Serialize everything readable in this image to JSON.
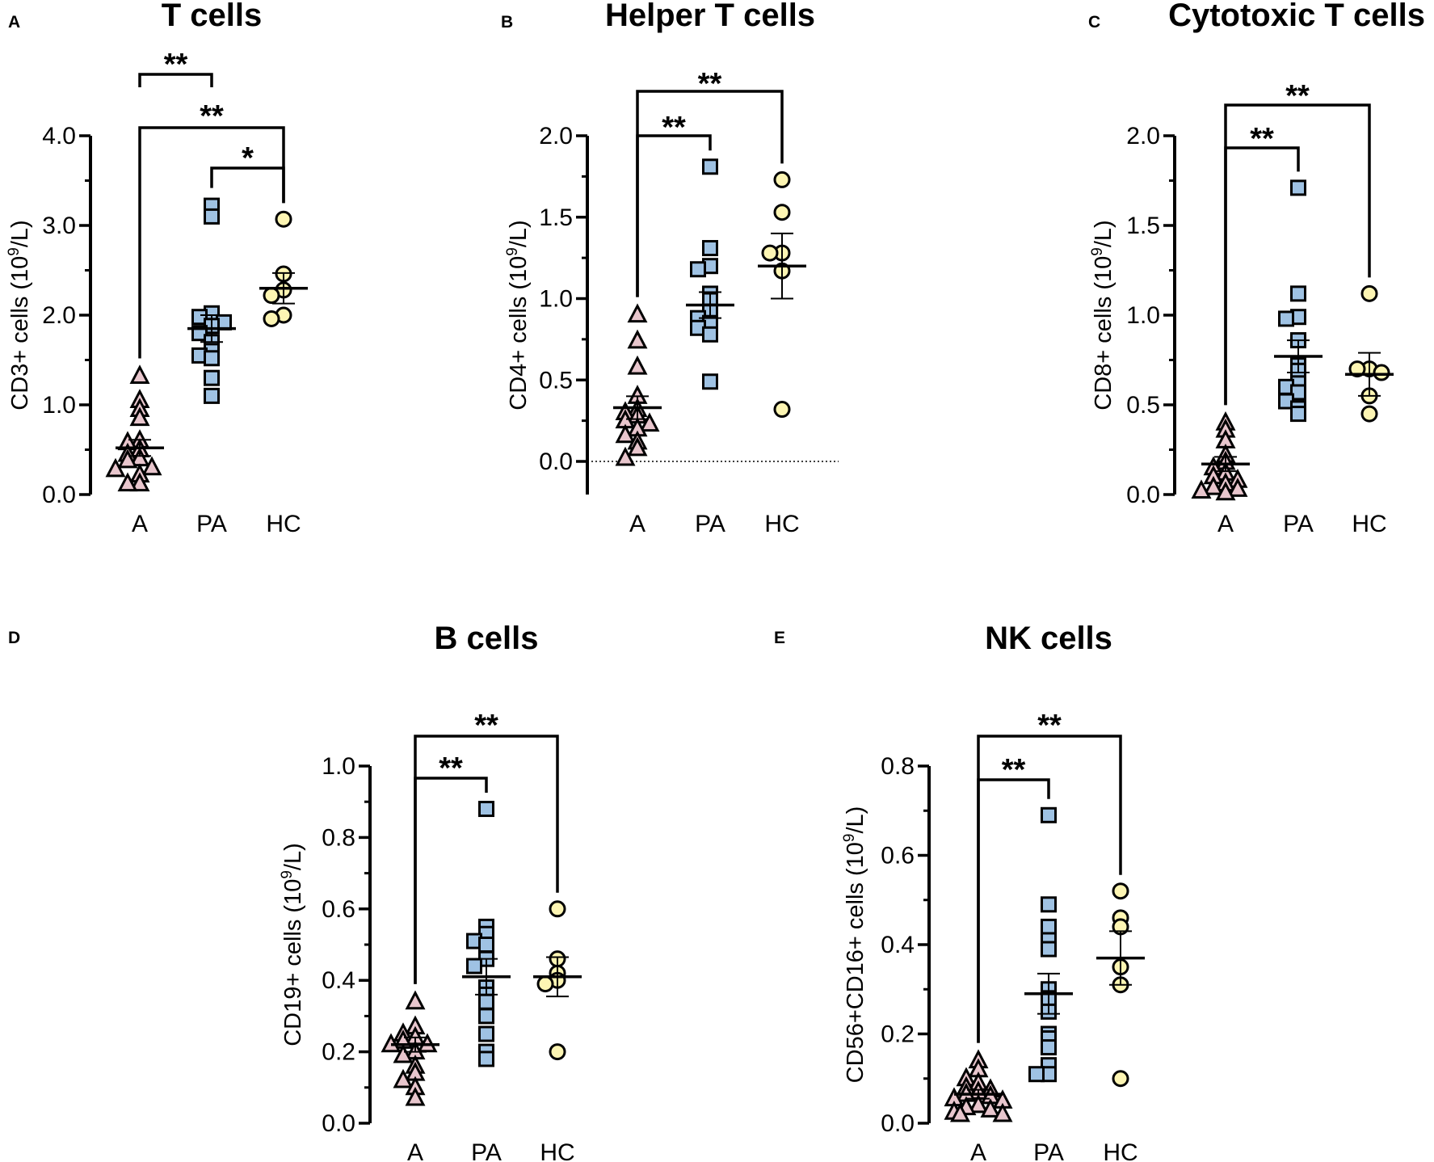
{
  "chart_data": [
    {
      "panel": "A",
      "type": "scatter",
      "title": "T cells",
      "ylabel_main": "CD3+ cells (10",
      "ylabel_sup": "9",
      "ylabel_end": "/L)",
      "ylim": [
        0,
        4.0
      ],
      "yticks": [
        0,
        1.0,
        2.0,
        3.0,
        4.0
      ],
      "ytick_labels": [
        "0.0",
        "1.0",
        "2.0",
        "3.0",
        "4.0"
      ],
      "minor_step": 0.5,
      "zero_line": false,
      "categories": [
        "A",
        "PA",
        "HC"
      ],
      "groups": [
        {
          "name": "A",
          "marker": "triangle",
          "color": "#e8c6cd",
          "mean": 0.52,
          "sem": 0.09,
          "values": [
            1.32,
            1.05,
            0.95,
            0.85,
            0.6,
            0.58,
            0.5,
            0.45,
            0.4,
            0.38,
            0.3,
            0.28,
            0.22,
            0.12,
            0.12
          ]
        },
        {
          "name": "PA",
          "marker": "square",
          "color": "#9fc2e3",
          "mean": 1.85,
          "sem": 0.15,
          "values": [
            3.22,
            3.1,
            2.02,
            1.98,
            1.92,
            1.88,
            1.8,
            1.7,
            1.6,
            1.55,
            1.52,
            1.3,
            1.1
          ]
        },
        {
          "name": "HC",
          "marker": "circle",
          "color": "#fdf5b3",
          "mean": 2.3,
          "sem": 0.17,
          "values": [
            3.07,
            2.46,
            2.28,
            2.22,
            2.0,
            1.96
          ]
        }
      ],
      "comparisons": [
        {
          "from": "A",
          "to": "PA",
          "label": "**"
        },
        {
          "from": "A",
          "to": "HC",
          "label": "**"
        },
        {
          "from": "PA",
          "to": "HC",
          "label": "*"
        }
      ]
    },
    {
      "panel": "B",
      "type": "scatter",
      "title": "Helper T cells",
      "ylabel_main": "CD4+ cells (10",
      "ylabel_sup": "9",
      "ylabel_end": "/L)",
      "ylim": [
        -0.2,
        2.0
      ],
      "yticks": [
        0,
        0.5,
        1.0,
        1.5,
        2.0
      ],
      "ytick_labels": [
        "0.0",
        "0.5",
        "1.0",
        "1.5",
        "2.0"
      ],
      "minor_step": 0.25,
      "zero_line": true,
      "categories": [
        "A",
        "PA",
        "HC"
      ],
      "groups": [
        {
          "name": "A",
          "marker": "triangle",
          "color": "#e8c6cd",
          "mean": 0.33,
          "sem": 0.07,
          "values": [
            0.9,
            0.74,
            0.58,
            0.4,
            0.32,
            0.3,
            0.28,
            0.25,
            0.23,
            0.2,
            0.16,
            0.12,
            0.08,
            0.02
          ]
        },
        {
          "name": "PA",
          "marker": "square",
          "color": "#9fc2e3",
          "mean": 0.96,
          "sem": 0.08,
          "values": [
            1.81,
            1.31,
            1.2,
            1.18,
            1.03,
            0.99,
            0.92,
            0.88,
            0.85,
            0.82,
            0.78,
            0.49
          ]
        },
        {
          "name": "HC",
          "marker": "circle",
          "color": "#fdf5b3",
          "mean": 1.2,
          "sem": 0.2,
          "values": [
            1.73,
            1.53,
            1.28,
            1.28,
            1.17,
            0.32
          ]
        }
      ],
      "comparisons": [
        {
          "from": "A",
          "to": "PA",
          "label": "**"
        },
        {
          "from": "A",
          "to": "HC",
          "label": "**"
        }
      ]
    },
    {
      "panel": "C",
      "type": "scatter",
      "title": "Cytotoxic T cells",
      "ylabel_main": "CD8+ cells (10",
      "ylabel_sup": "9",
      "ylabel_end": "/L)",
      "ylim": [
        0,
        2.0
      ],
      "yticks": [
        0,
        0.5,
        1.0,
        1.5,
        2.0
      ],
      "ytick_labels": [
        "0.0",
        "0.5",
        "1.0",
        "1.5",
        "2.0"
      ],
      "minor_step": 0.25,
      "zero_line": false,
      "categories": [
        "A",
        "PA",
        "HC"
      ],
      "groups": [
        {
          "name": "A",
          "marker": "triangle",
          "color": "#e8c6cd",
          "mean": 0.17,
          "sem": 0.04,
          "values": [
            0.4,
            0.36,
            0.3,
            0.22,
            0.18,
            0.15,
            0.12,
            0.1,
            0.08,
            0.06,
            0.04,
            0.03,
            0.02,
            0.01
          ]
        },
        {
          "name": "PA",
          "marker": "square",
          "color": "#9fc2e3",
          "mean": 0.77,
          "sem": 0.09,
          "values": [
            1.71,
            1.12,
            0.99,
            0.98,
            0.86,
            0.72,
            0.69,
            0.62,
            0.6,
            0.57,
            0.52,
            0.48,
            0.45
          ]
        },
        {
          "name": "HC",
          "marker": "circle",
          "color": "#fdf5b3",
          "mean": 0.67,
          "sem": 0.12,
          "values": [
            1.12,
            0.7,
            0.7,
            0.68,
            0.55,
            0.45
          ]
        }
      ],
      "comparisons": [
        {
          "from": "A",
          "to": "PA",
          "label": "**"
        },
        {
          "from": "A",
          "to": "HC",
          "label": "**"
        }
      ]
    },
    {
      "panel": "D",
      "type": "scatter",
      "title": "B cells",
      "ylabel_main": "CD19+ cells (10",
      "ylabel_sup": "9",
      "ylabel_end": "/L)",
      "ylim": [
        0,
        1.0
      ],
      "yticks": [
        0,
        0.2,
        0.4,
        0.6,
        0.8,
        1.0
      ],
      "ytick_labels": [
        "0.0",
        "0.2",
        "0.4",
        "0.6",
        "0.8",
        "1.0"
      ],
      "minor_step": 0.1,
      "zero_line": false,
      "categories": [
        "A",
        "PA",
        "HC"
      ],
      "groups": [
        {
          "name": "A",
          "marker": "triangle",
          "color": "#e8c6cd",
          "mean": 0.22,
          "sem": 0.02,
          "values": [
            0.34,
            0.27,
            0.25,
            0.24,
            0.23,
            0.22,
            0.22,
            0.2,
            0.19,
            0.16,
            0.14,
            0.12,
            0.1,
            0.07
          ]
        },
        {
          "name": "PA",
          "marker": "square",
          "color": "#9fc2e3",
          "mean": 0.41,
          "sem": 0.05,
          "values": [
            0.88,
            0.55,
            0.53,
            0.51,
            0.5,
            0.46,
            0.44,
            0.38,
            0.36,
            0.34,
            0.3,
            0.25,
            0.2,
            0.18
          ]
        },
        {
          "name": "HC",
          "marker": "circle",
          "color": "#fdf5b3",
          "mean": 0.41,
          "sem": 0.055,
          "values": [
            0.6,
            0.46,
            0.42,
            0.4,
            0.39,
            0.2
          ]
        }
      ],
      "comparisons": [
        {
          "from": "A",
          "to": "PA",
          "label": "**"
        },
        {
          "from": "A",
          "to": "HC",
          "label": "**"
        }
      ]
    },
    {
      "panel": "E",
      "type": "scatter",
      "title": "NK cells",
      "ylabel_main": "CD56+CD16+ cells (10",
      "ylabel_sup": "9",
      "ylabel_end": "/L)",
      "ylim": [
        0,
        0.8
      ],
      "yticks": [
        0,
        0.2,
        0.4,
        0.6,
        0.8
      ],
      "ytick_labels": [
        "0.0",
        "0.2",
        "0.4",
        "0.6",
        "0.8"
      ],
      "minor_step": 0.1,
      "zero_line": false,
      "categories": [
        "A",
        "PA",
        "HC"
      ],
      "groups": [
        {
          "name": "A",
          "marker": "triangle",
          "color": "#e8c6cd",
          "mean": 0.065,
          "sem": 0.01,
          "values": [
            0.14,
            0.12,
            0.1,
            0.09,
            0.08,
            0.075,
            0.07,
            0.065,
            0.06,
            0.055,
            0.05,
            0.04,
            0.035,
            0.03,
            0.025,
            0.02,
            0.02
          ]
        },
        {
          "name": "PA",
          "marker": "square",
          "color": "#9fc2e3",
          "mean": 0.29,
          "sem": 0.045,
          "values": [
            0.69,
            0.49,
            0.44,
            0.41,
            0.39,
            0.3,
            0.28,
            0.25,
            0.2,
            0.19,
            0.17,
            0.13,
            0.11,
            0.11
          ]
        },
        {
          "name": "HC",
          "marker": "circle",
          "color": "#fdf5b3",
          "mean": 0.37,
          "sem": 0.06,
          "values": [
            0.52,
            0.46,
            0.44,
            0.35,
            0.31,
            0.1
          ]
        }
      ],
      "comparisons": [
        {
          "from": "A",
          "to": "PA",
          "label": "**"
        },
        {
          "from": "A",
          "to": "HC",
          "label": "**"
        }
      ]
    }
  ]
}
